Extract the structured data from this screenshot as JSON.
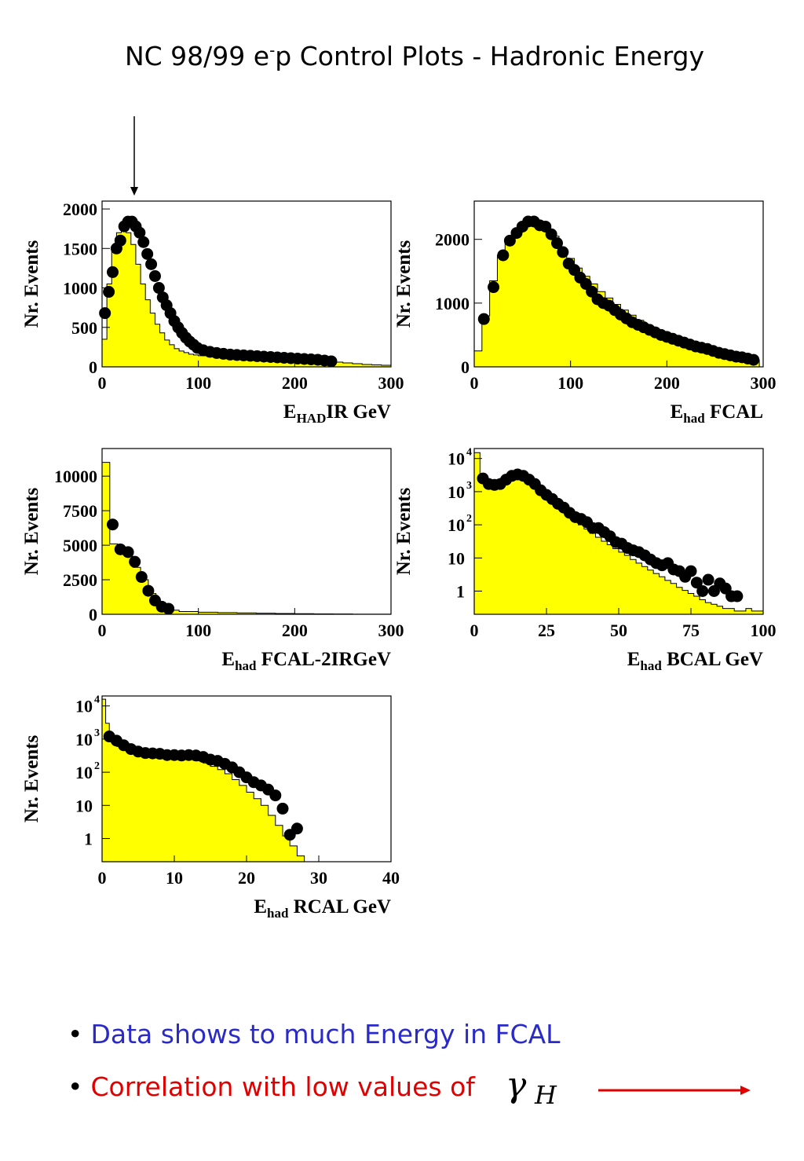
{
  "title": {
    "main": "NC 98/99 e",
    "sup": "-",
    "rest": "p Control Plots - Hadronic Energy"
  },
  "bullets": [
    {
      "text": "Data shows to much Energy in FCAL",
      "color": "#2a2ac8"
    },
    {
      "text": "Correlation with low values of",
      "color": "#e00000"
    }
  ],
  "gamma": {
    "symbol": "γ",
    "subscript": "H"
  },
  "colors": {
    "mc_fill": "#ffff00",
    "data_points": "#000000",
    "arrow_red": "#e00000"
  },
  "chart_data": [
    {
      "type": "bar",
      "ylabel": "Nr. Events",
      "xlabel_main": "E",
      "xlabel_sub": "HAD",
      "xlabel_rest": "IR GeV",
      "xlim": [
        0,
        300
      ],
      "ylim": [
        0,
        2100
      ],
      "log": false,
      "xticks": [
        0,
        100,
        200,
        300
      ],
      "yticks": [
        0,
        500,
        1000,
        1500,
        2000
      ],
      "mc_x": [
        0,
        5,
        10,
        15,
        20,
        25,
        30,
        35,
        40,
        45,
        50,
        55,
        60,
        65,
        70,
        75,
        80,
        85,
        90,
        95,
        100,
        110,
        120,
        130,
        140,
        150,
        160,
        170,
        180,
        190,
        200,
        210,
        220,
        230,
        240,
        250,
        260,
        270,
        280,
        290,
        300
      ],
      "mc_y": [
        350,
        1050,
        1500,
        1700,
        1800,
        1700,
        1550,
        1300,
        1050,
        850,
        680,
        540,
        430,
        340,
        280,
        230,
        200,
        180,
        160,
        150,
        140,
        135,
        130,
        125,
        120,
        115,
        110,
        105,
        100,
        95,
        90,
        85,
        80,
        70,
        60,
        50,
        40,
        30,
        25,
        20
      ],
      "data_x": [
        3,
        7,
        11,
        15,
        19,
        23,
        27,
        31,
        35,
        39,
        43,
        47,
        51,
        55,
        59,
        63,
        67,
        71,
        75,
        79,
        83,
        87,
        91,
        95,
        99,
        105,
        112,
        119,
        126,
        133,
        140,
        147,
        154,
        161,
        168,
        175,
        182,
        189,
        196,
        203,
        210,
        217,
        224,
        231,
        238
      ],
      "data_y": [
        680,
        950,
        1200,
        1500,
        1600,
        1780,
        1840,
        1840,
        1780,
        1700,
        1580,
        1430,
        1300,
        1150,
        1000,
        880,
        780,
        680,
        580,
        500,
        430,
        370,
        320,
        280,
        240,
        210,
        190,
        175,
        165,
        155,
        150,
        145,
        140,
        135,
        130,
        125,
        120,
        115,
        110,
        105,
        100,
        95,
        90,
        80,
        70
      ]
    },
    {
      "type": "bar",
      "ylabel": "Nr. Events",
      "xlabel_main": "E",
      "xlabel_sub": "had",
      "xlabel_rest": " FCAL",
      "xlim": [
        0,
        300
      ],
      "ylim": [
        0,
        2600
      ],
      "log": false,
      "xticks": [
        0,
        100,
        200,
        300
      ],
      "yticks": [
        0,
        1000,
        2000
      ],
      "mc_x": [
        0,
        8,
        16,
        24,
        32,
        40,
        48,
        56,
        64,
        72,
        80,
        88,
        96,
        104,
        112,
        120,
        128,
        136,
        144,
        152,
        160,
        168,
        176,
        184,
        192,
        200,
        208,
        216,
        224,
        232,
        240,
        248,
        256,
        264,
        272,
        280,
        288,
        296
      ],
      "mc_y": [
        250,
        800,
        1350,
        1750,
        1950,
        2100,
        2200,
        2250,
        2250,
        2150,
        2050,
        1850,
        1700,
        1550,
        1420,
        1300,
        1180,
        1080,
        980,
        890,
        810,
        730,
        660,
        600,
        550,
        500,
        450,
        410,
        370,
        330,
        290,
        260,
        230,
        200,
        170,
        140,
        110
      ],
      "data_x": [
        10,
        20,
        30,
        37,
        44,
        50,
        56,
        62,
        68,
        74,
        80,
        86,
        92,
        98,
        104,
        110,
        116,
        122,
        128,
        134,
        140,
        146,
        152,
        158,
        164,
        170,
        176,
        182,
        188,
        194,
        200,
        206,
        212,
        218,
        224,
        230,
        236,
        242,
        248,
        254,
        260,
        266,
        272,
        278,
        284,
        290
      ],
      "data_y": [
        750,
        1250,
        1750,
        1980,
        2100,
        2200,
        2280,
        2280,
        2220,
        2200,
        2080,
        1940,
        1800,
        1620,
        1520,
        1400,
        1300,
        1180,
        1060,
        1000,
        960,
        890,
        820,
        760,
        700,
        660,
        620,
        580,
        540,
        500,
        470,
        440,
        410,
        380,
        350,
        320,
        300,
        280,
        250,
        220,
        200,
        180,
        160,
        150,
        130,
        110
      ]
    },
    {
      "type": "bar",
      "ylabel": "Nr. Events",
      "xlabel_main": "E",
      "xlabel_sub": "had",
      "xlabel_rest": " FCAL-2IRGeV",
      "xlim": [
        0,
        300
      ],
      "ylim": [
        0,
        12000
      ],
      "log": false,
      "xticks": [
        0,
        100,
        200,
        300
      ],
      "yticks": [
        0,
        2500,
        5000,
        7500,
        10000
      ],
      "mc_x": [
        0,
        8,
        16,
        24,
        32,
        40,
        48,
        56,
        64,
        72,
        80,
        100,
        120,
        140,
        160,
        180,
        200,
        220,
        240,
        260,
        280,
        300
      ],
      "mc_y": [
        11000,
        5100,
        4600,
        4200,
        3400,
        2500,
        1500,
        850,
        500,
        300,
        200,
        150,
        120,
        100,
        80,
        60,
        40,
        30,
        20,
        10,
        5
      ],
      "data_x": [
        11,
        19,
        27,
        34,
        41,
        48,
        55,
        62,
        69
      ],
      "data_y": [
        6500,
        4700,
        4500,
        3800,
        2700,
        1700,
        1000,
        550,
        400
      ]
    },
    {
      "type": "bar",
      "ylabel": "Nr. Events",
      "xlabel_main": "E",
      "xlabel_sub": "had",
      "xlabel_rest": " BCAL GeV",
      "xlim": [
        0,
        100
      ],
      "ylim_log": [
        0.2,
        20000
      ],
      "log": true,
      "xticks": [
        0,
        25,
        50,
        75,
        100
      ],
      "ytick_labels": [
        "1",
        "10",
        "10",
        "10",
        "10"
      ],
      "ytick_exps": [
        "",
        "",
        "2",
        "3",
        "4"
      ],
      "mc_x": [
        0,
        2,
        4,
        6,
        8,
        10,
        12,
        14,
        16,
        18,
        20,
        22,
        24,
        26,
        28,
        30,
        32,
        34,
        36,
        38,
        40,
        42,
        44,
        46,
        48,
        50,
        52,
        54,
        56,
        58,
        60,
        62,
        64,
        66,
        68,
        70,
        72,
        74,
        76,
        78,
        80,
        82,
        84,
        86,
        88,
        90,
        92,
        94,
        96,
        98,
        100
      ],
      "mc_y": [
        15000,
        3500,
        2000,
        2000,
        2200,
        2500,
        2700,
        2700,
        2500,
        2000,
        1400,
        1000,
        700,
        500,
        360,
        260,
        190,
        140,
        100,
        75,
        55,
        42,
        32,
        25,
        19,
        15,
        12,
        9,
        7,
        5.5,
        4.3,
        3.4,
        2.7,
        2.1,
        1.7,
        1.3,
        1.05,
        0.85,
        0.7,
        0.55,
        0.45,
        0.4,
        0.35,
        0.3,
        0.3,
        0.25,
        0.25,
        0.3,
        0.25,
        0.25
      ],
      "data_x": [
        3,
        5,
        7,
        9,
        11,
        13,
        15,
        17,
        19,
        21,
        23,
        25,
        27,
        29,
        31,
        33,
        35,
        37,
        39,
        41,
        43,
        45,
        47,
        49,
        51,
        53,
        55,
        57,
        59,
        61,
        63,
        65,
        67,
        69,
        71,
        73,
        75,
        77,
        79,
        81,
        83,
        85,
        87,
        89,
        91
      ],
      "data_y": [
        2500,
        1700,
        1600,
        1700,
        2300,
        3000,
        3300,
        3000,
        2300,
        1700,
        1100,
        800,
        600,
        430,
        330,
        230,
        170,
        150,
        120,
        80,
        80,
        60,
        45,
        30,
        27,
        20,
        17,
        15,
        12,
        9,
        7,
        6,
        7,
        4.5,
        4,
        2.7,
        4,
        1.8,
        1,
        2.2,
        1,
        1.7,
        1.2,
        0.7,
        0.7
      ]
    },
    {
      "type": "bar",
      "ylabel": "Nr. Events",
      "xlabel_main": "E",
      "xlabel_sub": "had",
      "xlabel_rest": " RCAL GeV",
      "xlim": [
        0,
        40
      ],
      "ylim_log": [
        0.2,
        20000
      ],
      "log": true,
      "xticks": [
        0,
        10,
        20,
        30,
        40
      ],
      "ytick_labels": [
        "1",
        "10",
        "10",
        "10",
        "10"
      ],
      "ytick_exps": [
        "",
        "",
        "2",
        "3",
        "4"
      ],
      "mc_x": [
        0,
        0.5,
        1,
        1.5,
        2,
        3,
        4,
        5,
        6,
        7,
        8,
        9,
        10,
        11,
        12,
        13,
        14,
        15,
        16,
        17,
        18,
        19,
        20,
        21,
        22,
        23,
        24,
        25,
        26,
        27,
        28,
        29,
        30
      ],
      "mc_y": [
        16000,
        3000,
        1100,
        800,
        600,
        450,
        360,
        340,
        320,
        310,
        300,
        290,
        280,
        270,
        250,
        220,
        190,
        150,
        120,
        90,
        60,
        40,
        25,
        16,
        10,
        5,
        2.5,
        1.2,
        0.6,
        0.3,
        0.1,
        0.1
      ],
      "data_x": [
        1,
        2,
        3,
        4,
        5,
        6,
        7,
        8,
        9,
        10,
        11,
        12,
        13,
        14,
        15,
        16,
        17,
        18,
        19,
        20,
        21,
        22,
        23,
        24,
        25,
        26,
        27
      ],
      "data_y": [
        1200,
        900,
        650,
        500,
        420,
        380,
        370,
        360,
        330,
        330,
        320,
        330,
        320,
        290,
        240,
        220,
        180,
        140,
        100,
        70,
        50,
        40,
        30,
        20,
        8,
        1.3,
        2
      ]
    }
  ]
}
